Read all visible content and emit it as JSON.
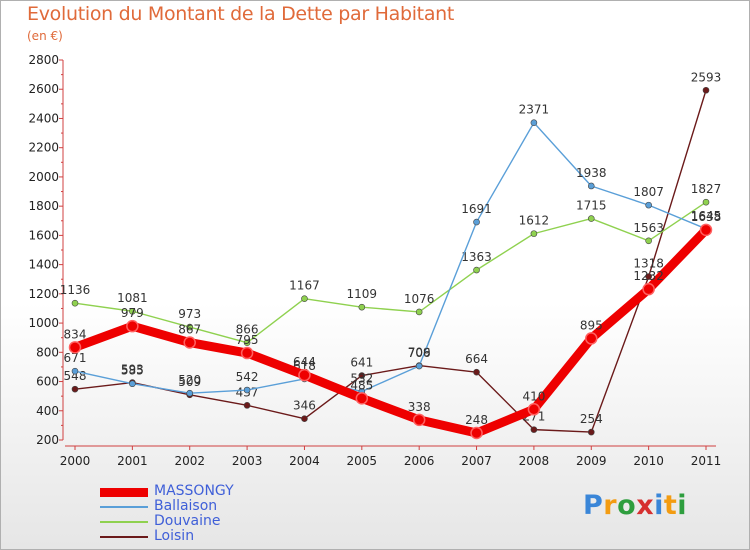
{
  "header": {
    "title": "Evolution du Montant de la Dette par Habitant",
    "unit": "(en €)"
  },
  "logo": {
    "text": "Proxiti",
    "letters": [
      "P",
      "r",
      "o",
      "x",
      "i",
      "t",
      "i"
    ],
    "letter_colors": [
      "#3a86d8",
      "#f39c12",
      "#2e9e3e",
      "#d63030",
      "#3a86d8",
      "#f39c12",
      "#2e9e3e"
    ]
  },
  "chart_data": {
    "type": "line",
    "x": [
      "2000",
      "2001",
      "2002",
      "2003",
      "2004",
      "2005",
      "2006",
      "2007",
      "2008",
      "2009",
      "2010",
      "2011"
    ],
    "ylim": [
      200,
      2800
    ],
    "yticks": [
      200,
      400,
      600,
      800,
      1000,
      1200,
      1400,
      1600,
      1800,
      2000,
      2200,
      2400,
      2600,
      2800
    ],
    "grid": false,
    "legend_position": "bottom-left",
    "series": [
      {
        "name": "Loisin",
        "color": "#6b1a1a",
        "values": [
          548,
          593,
          509,
          437,
          346,
          641,
          709,
          664,
          271,
          254,
          1318,
          2593
        ],
        "labels": [
          "548",
          "593",
          "509",
          "437",
          "346",
          "641",
          "709",
          "664",
          "271",
          "254",
          "1318",
          "2593"
        ]
      },
      {
        "name": "Douvaine",
        "color": "#8fd14f",
        "values": [
          1136,
          1081,
          973,
          866,
          1167,
          1109,
          1076,
          1363,
          1612,
          1715,
          1563,
          1827
        ],
        "labels": [
          "1136",
          "1081",
          "973",
          "866",
          "1167",
          "1109",
          "1076",
          "1363",
          "1612",
          "1715",
          "1563",
          "1827"
        ]
      },
      {
        "name": "Ballaison",
        "color": "#5a9fd8",
        "values": [
          671,
          585,
          520,
          542,
          618,
          532,
          706,
          1691,
          2371,
          1938,
          1807,
          1645
        ],
        "labels": [
          "671",
          "585",
          "520",
          "542",
          "618",
          "532",
          "706",
          "1691",
          "2371",
          "1938",
          "1807",
          "1645"
        ]
      },
      {
        "name": "MASSONGY",
        "color": "#ee0000",
        "values": [
          834,
          979,
          867,
          795,
          644,
          485,
          338,
          248,
          410,
          895,
          1232,
          1638
        ],
        "labels": [
          "834",
          "979",
          "867",
          "795",
          "644",
          "485",
          "338",
          "248",
          "410",
          "895",
          "1232",
          "1638"
        ]
      }
    ]
  }
}
